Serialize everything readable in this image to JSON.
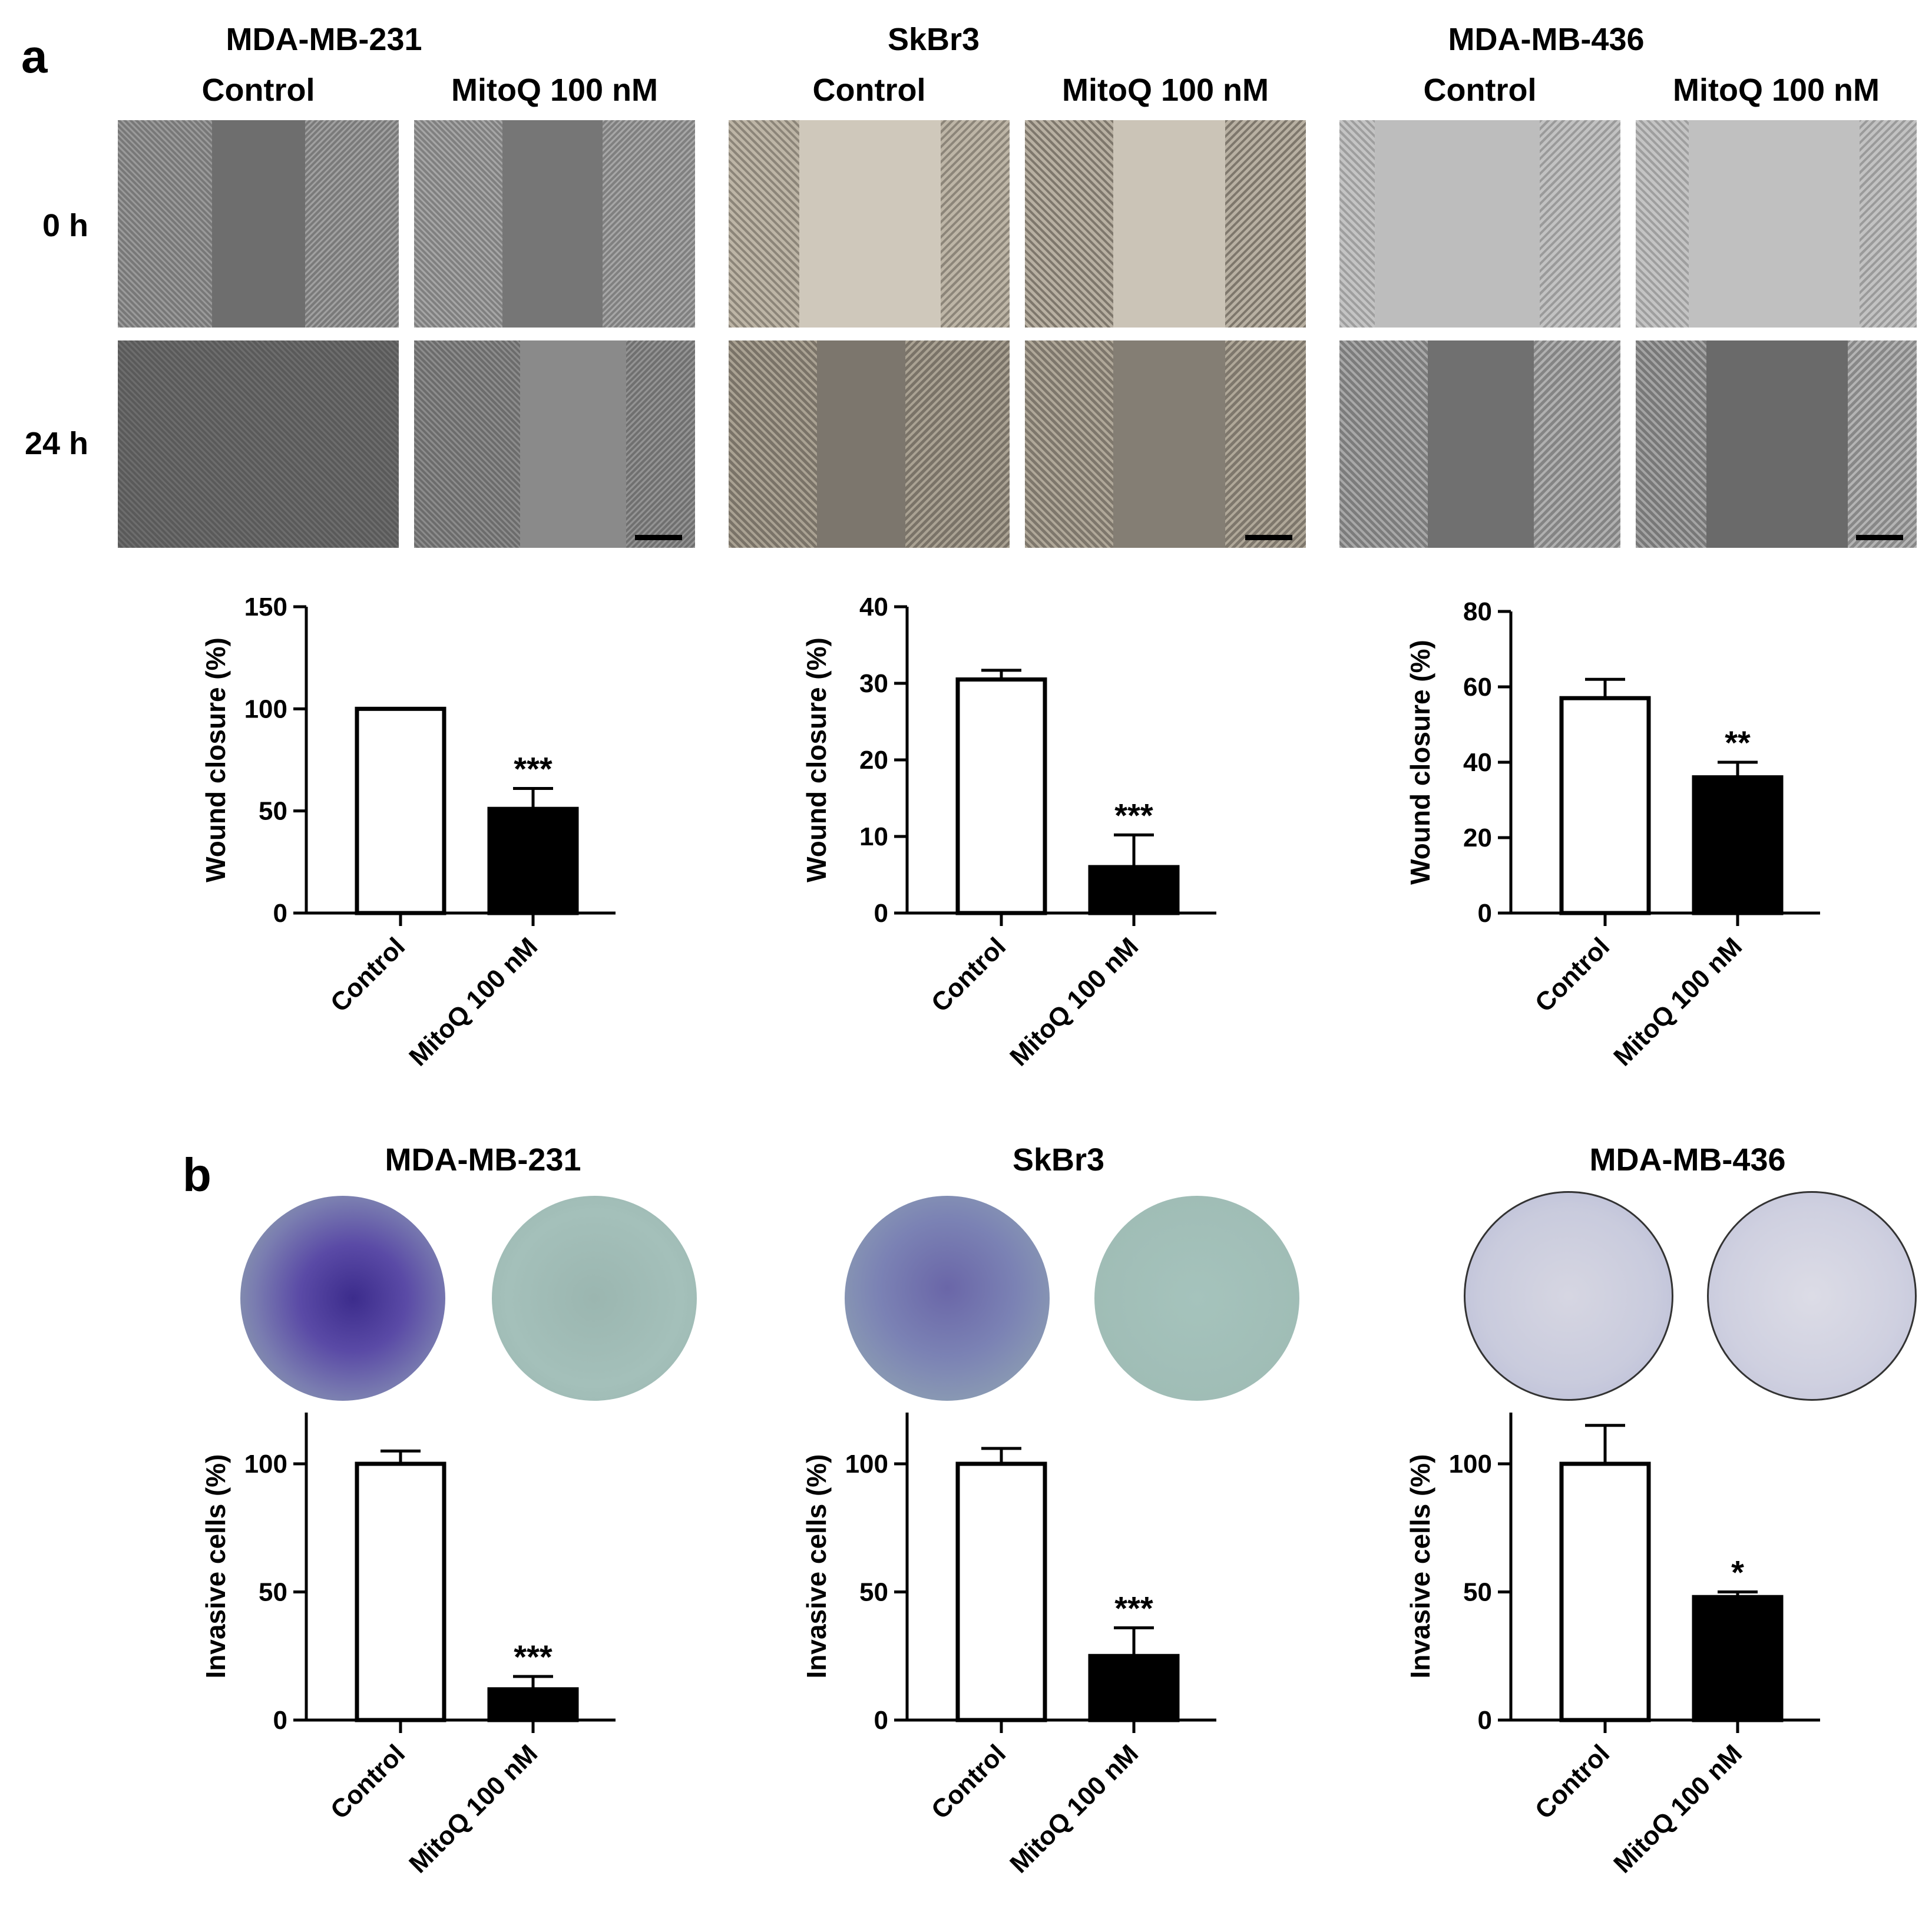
{
  "panel_a": {
    "letter": "a",
    "time_labels": [
      "0 h",
      "24 h"
    ],
    "cell_lines": [
      {
        "name": "MDA-MB-231",
        "conditions": [
          "Control",
          "MitoQ 100 nM"
        ]
      },
      {
        "name": "SkBr3",
        "conditions": [
          "Control",
          "MitoQ 100 nM"
        ]
      },
      {
        "name": "MDA-MB-436",
        "conditions": [
          "Control",
          "MitoQ 100 nM"
        ]
      }
    ]
  },
  "panel_b": {
    "letter": "b",
    "cell_lines": [
      {
        "name": "MDA-MB-231"
      },
      {
        "name": "SkBr3"
      },
      {
        "name": "MDA-MB-436"
      }
    ]
  },
  "colors": {
    "control_bar": "#ffffff",
    "treated_bar": "#000000",
    "stain": "#4b3a9a",
    "well_bg": "#9cb9b3"
  },
  "chart_data": [
    {
      "type": "bar",
      "cell_line": "MDA-MB-231",
      "ylabel": "Wound closure (%)",
      "categories": [
        "Control",
        "MitoQ 100 nM"
      ],
      "values": [
        100,
        51
      ],
      "errors": [
        0,
        10
      ],
      "significance": [
        "",
        "***"
      ],
      "ylim": [
        0,
        150
      ],
      "yticks": [
        0,
        50,
        100,
        150
      ]
    },
    {
      "type": "bar",
      "cell_line": "SkBr3",
      "ylabel": "Wound closure (%)",
      "categories": [
        "Control",
        "MitoQ 100 nM"
      ],
      "values": [
        30.5,
        6
      ],
      "errors": [
        1.2,
        4.2
      ],
      "significance": [
        "",
        "***"
      ],
      "ylim": [
        0,
        40
      ],
      "yticks": [
        0,
        10,
        20,
        30,
        40
      ]
    },
    {
      "type": "bar",
      "cell_line": "MDA-MB-436",
      "ylabel": "Wound closure (%)",
      "categories": [
        "Control",
        "MitoQ 100 nM"
      ],
      "values": [
        57,
        36
      ],
      "errors": [
        5,
        4
      ],
      "significance": [
        "",
        "**"
      ],
      "ylim": [
        0,
        80
      ],
      "yticks": [
        0,
        20,
        40,
        60,
        80
      ]
    },
    {
      "type": "bar",
      "cell_line": "MDA-MB-231",
      "ylabel": "Invasive cells (%)",
      "categories": [
        "Control",
        "MitoQ 100 nM"
      ],
      "values": [
        100,
        12
      ],
      "errors": [
        5,
        5
      ],
      "significance": [
        "",
        "***"
      ],
      "ylim": [
        0,
        120
      ],
      "yticks": [
        0,
        50,
        100
      ]
    },
    {
      "type": "bar",
      "cell_line": "SkBr3",
      "ylabel": "Invasive cells (%)",
      "categories": [
        "Control",
        "MitoQ 100 nM"
      ],
      "values": [
        100,
        25
      ],
      "errors": [
        6,
        11
      ],
      "significance": [
        "",
        "***"
      ],
      "ylim": [
        0,
        120
      ],
      "yticks": [
        0,
        50,
        100
      ]
    },
    {
      "type": "bar",
      "cell_line": "MDA-MB-436",
      "ylabel": "Invasive cells (%)",
      "categories": [
        "Control",
        "MitoQ 100 nM"
      ],
      "values": [
        100,
        48
      ],
      "errors": [
        15,
        2
      ],
      "significance": [
        "",
        "*"
      ],
      "ylim": [
        0,
        120
      ],
      "yticks": [
        0,
        50,
        100
      ]
    }
  ]
}
